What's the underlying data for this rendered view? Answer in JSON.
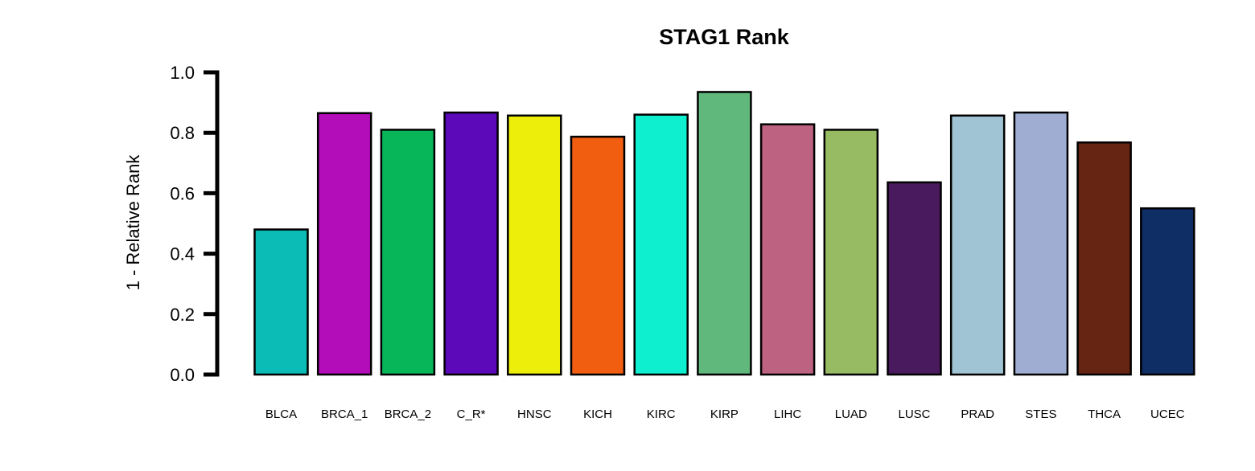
{
  "chart_data": {
    "type": "bar",
    "title": "STAG1 Rank",
    "xlabel": "",
    "ylabel": "1 - Relative Rank",
    "ylim": [
      0,
      1.0
    ],
    "yticks": [
      "0.0",
      "0.2",
      "0.4",
      "0.6",
      "0.8",
      "1.0"
    ],
    "categories": [
      "BLCA",
      "BRCA_1",
      "BRCA_2",
      "C_R*",
      "HNSC",
      "KICH",
      "KIRC",
      "KIRP",
      "LIHC",
      "LUAD",
      "LUSC",
      "PRAD",
      "STES",
      "THCA",
      "UCEC"
    ],
    "values": [
      0.48,
      0.865,
      0.81,
      0.867,
      0.857,
      0.787,
      0.86,
      0.935,
      0.828,
      0.81,
      0.636,
      0.857,
      0.867,
      0.768,
      0.55
    ],
    "colors": [
      "#0BBBB5",
      "#B30CB9",
      "#08B65A",
      "#5C09B9",
      "#EEEE0B",
      "#F15E10",
      "#0EEFD0",
      "#60B87D",
      "#BD6280",
      "#97BB62",
      "#491B5E",
      "#A0C4D4",
      "#9FADD2",
      "#662412",
      "#0E2E65"
    ],
    "grid": false,
    "legend": "none"
  }
}
